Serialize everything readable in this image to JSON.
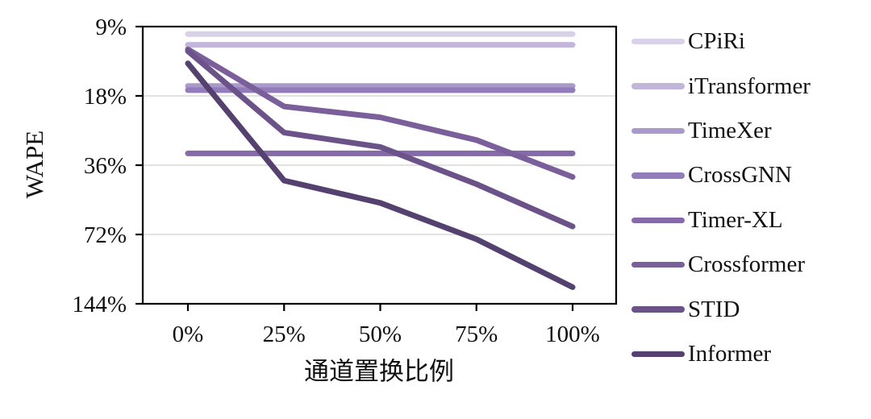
{
  "figure": {
    "background_color": "#ffffff",
    "axis_color": "#000000",
    "gridline_color": "#d9d9d9",
    "text_color": "#111111"
  },
  "chart_data": {
    "type": "line",
    "title": "",
    "xlabel": "通道置换比例",
    "ylabel": "WAPE",
    "x_tick_labels": [
      "0%",
      "25%",
      "50%",
      "75%",
      "100%"
    ],
    "x_values": [
      0,
      25,
      50,
      75,
      100
    ],
    "y_axis": {
      "scale": "log2",
      "direction": "inverted-down-is-larger",
      "ticks": [
        9,
        18,
        36,
        72,
        144
      ],
      "tick_labels": [
        "9%",
        "18%",
        "36%",
        "72%",
        "144%"
      ],
      "unit": "percent WAPE"
    },
    "grid": "horizontal",
    "legend_position": "right",
    "series": [
      {
        "name": "CPiRi",
        "color": "#d8d1e7",
        "values": [
          9.7,
          9.7,
          9.7,
          9.7,
          9.7
        ]
      },
      {
        "name": "iTransformer",
        "color": "#c2b6da",
        "values": [
          10.8,
          10.8,
          10.8,
          10.8,
          10.8
        ]
      },
      {
        "name": "TimeXer",
        "color": "#aa9aca",
        "values": [
          16.3,
          16.3,
          16.3,
          16.3,
          16.3
        ]
      },
      {
        "name": "CrossGNN",
        "color": "#937cba",
        "values": [
          17,
          17,
          17,
          17,
          17
        ]
      },
      {
        "name": "Timer-XL",
        "color": "#8669a9",
        "values": [
          32,
          32,
          32,
          32,
          32
        ]
      },
      {
        "name": "Crossformer",
        "color": "#7a5f9b",
        "values": [
          11.3,
          20,
          22.3,
          28,
          40.5
        ]
      },
      {
        "name": "STID",
        "color": "#6b5289",
        "values": [
          11.5,
          26,
          30,
          43.5,
          66.5
        ]
      },
      {
        "name": "Informer",
        "color": "#554170",
        "values": [
          13,
          42,
          52.5,
          75.5,
          122
        ]
      }
    ]
  }
}
